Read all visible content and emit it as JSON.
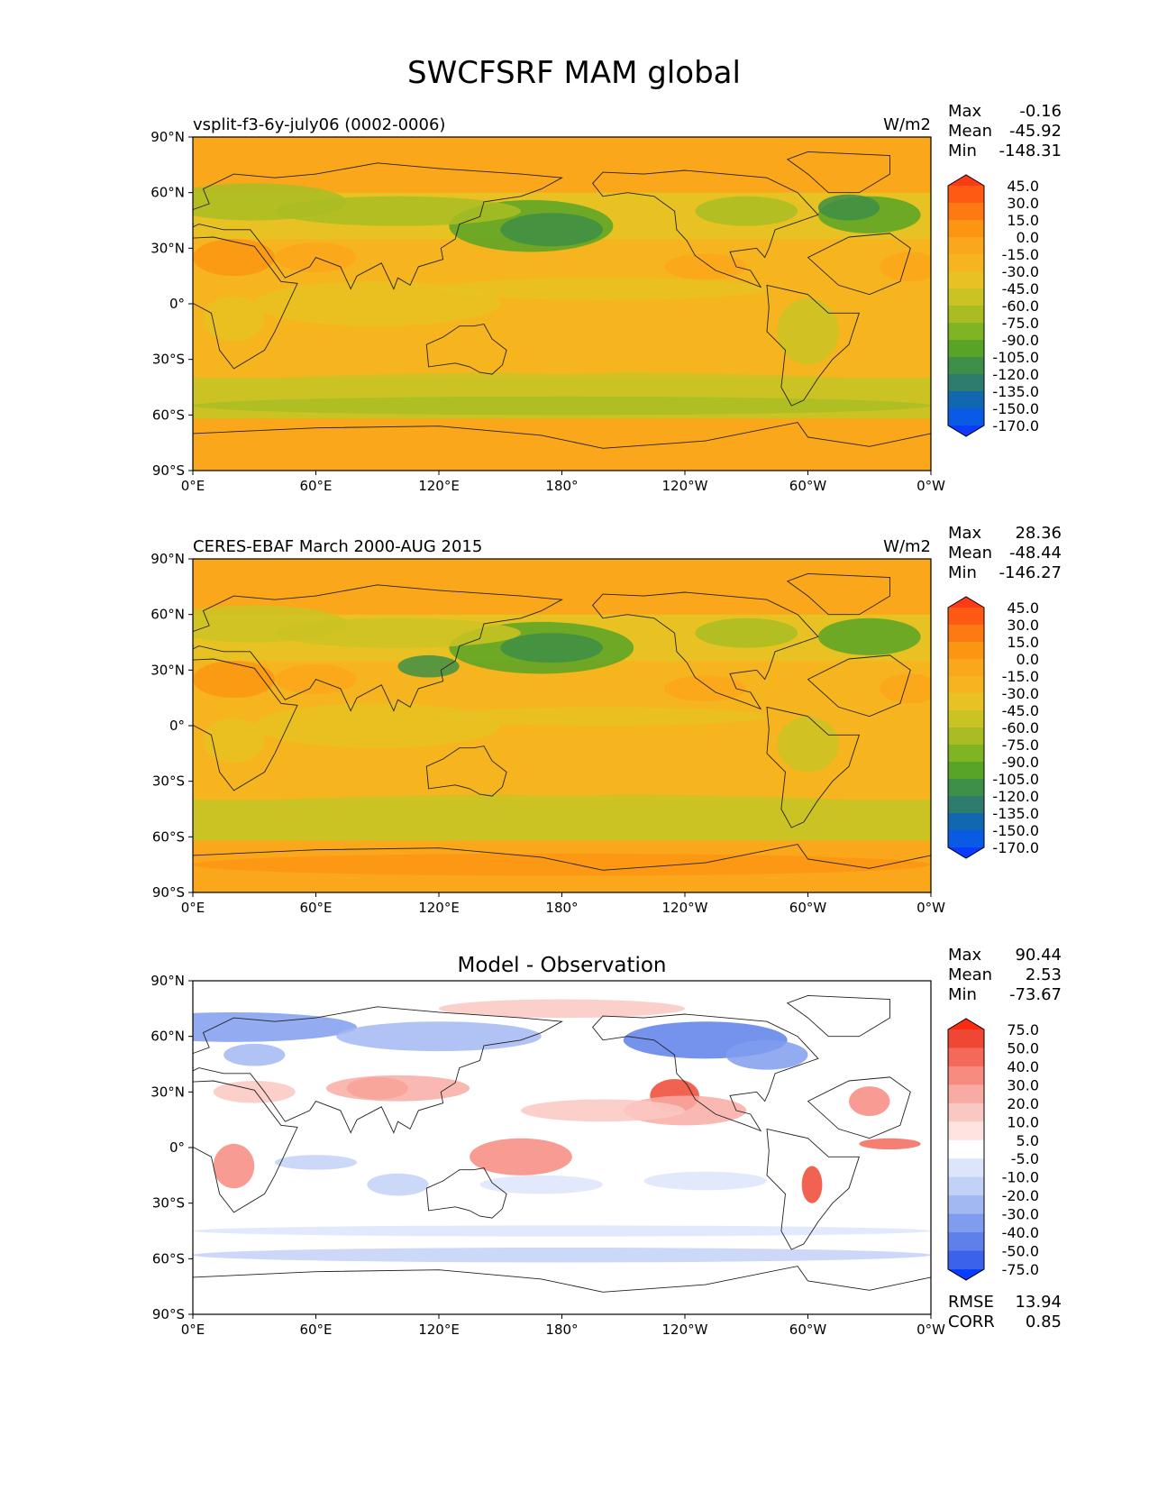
{
  "title": "SWCFSRF MAM global",
  "colors": {
    "ocean_base": "#fba71b",
    "diff_base": "#ffffff"
  },
  "chart_data": [
    {
      "type": "heatmap",
      "title_left": "vsplit-f3-6y-july06 (0002-0006)",
      "units": "W/m2",
      "stats": [
        {
          "label": "Max",
          "value": "-0.16"
        },
        {
          "label": "Mean",
          "value": "-45.92"
        },
        {
          "label": "Min",
          "value": "-148.31"
        }
      ],
      "xticks": [
        "0°E",
        "60°E",
        "120°E",
        "180°",
        "120°W",
        "60°W",
        "0°W"
      ],
      "yticks": [
        "90°N",
        "60°N",
        "30°N",
        "0°",
        "30°S",
        "60°S",
        "90°S"
      ],
      "colorbar": {
        "levels": [
          "45.0",
          "30.0",
          "15.0",
          "0.0",
          "-15.0",
          "-30.0",
          "-45.0",
          "-60.0",
          "-75.0",
          "-90.0",
          "-105.0",
          "-120.0",
          "-135.0",
          "-150.0",
          "-170.0"
        ],
        "colors": [
          "#ff3b16",
          "#ff5a14",
          "#fd7a12",
          "#fb9512",
          "#fba71b",
          "#f6b51f",
          "#e7c222",
          "#cbc323",
          "#a9bd23",
          "#7fb522",
          "#57a426",
          "#3e8f47",
          "#2d7c6d",
          "#1168b0",
          "#0b5ae6",
          "#0a3cff"
        ]
      }
    },
    {
      "type": "heatmap",
      "title_left": "CERES-EBAF March 2000-AUG 2015",
      "units": "W/m2",
      "stats": [
        {
          "label": "Max",
          "value": "28.36"
        },
        {
          "label": "Mean",
          "value": "-48.44"
        },
        {
          "label": "Min",
          "value": "-146.27"
        }
      ],
      "xticks": [
        "0°E",
        "60°E",
        "120°E",
        "180°",
        "120°W",
        "60°W",
        "0°W"
      ],
      "yticks": [
        "90°N",
        "60°N",
        "30°N",
        "0°",
        "30°S",
        "60°S",
        "90°S"
      ],
      "colorbar": {
        "levels": [
          "45.0",
          "30.0",
          "15.0",
          "0.0",
          "-15.0",
          "-30.0",
          "-45.0",
          "-60.0",
          "-75.0",
          "-90.0",
          "-105.0",
          "-120.0",
          "-135.0",
          "-150.0",
          "-170.0"
        ],
        "colors": [
          "#ff3b16",
          "#ff5a14",
          "#fd7a12",
          "#fb9512",
          "#fba71b",
          "#f6b51f",
          "#e7c222",
          "#cbc323",
          "#a9bd23",
          "#7fb522",
          "#57a426",
          "#3e8f47",
          "#2d7c6d",
          "#1168b0",
          "#0b5ae6",
          "#0a3cff"
        ]
      }
    },
    {
      "type": "heatmap",
      "title_center": "Model - Observation",
      "stats": [
        {
          "label": "Max",
          "value": "90.44"
        },
        {
          "label": "Mean",
          "value": "2.53"
        },
        {
          "label": "Min",
          "value": "-73.67"
        }
      ],
      "extra_stats": [
        {
          "label": "RMSE",
          "value": "13.94"
        },
        {
          "label": "CORR",
          "value": "0.85"
        }
      ],
      "xticks": [
        "0°E",
        "60°E",
        "120°E",
        "180°",
        "120°W",
        "60°W",
        "0°W"
      ],
      "yticks": [
        "90°N",
        "60°N",
        "30°N",
        "0°",
        "30°S",
        "60°S",
        "90°S"
      ],
      "colorbar": {
        "levels": [
          "75.0",
          "50.0",
          "40.0",
          "30.0",
          "20.0",
          "10.0",
          "5.0",
          "-5.0",
          "-10.0",
          "-20.0",
          "-30.0",
          "-40.0",
          "-50.0",
          "-75.0"
        ],
        "colors": [
          "#ff2a12",
          "#ef4733",
          "#f4695a",
          "#f78b80",
          "#f8aba3",
          "#fac8c2",
          "#fde4e1",
          "#ffffff",
          "#dde5fb",
          "#c3d1f6",
          "#a2b8f2",
          "#7f9cee",
          "#5d80ea",
          "#3a62eb",
          "#0a3cff"
        ]
      }
    }
  ]
}
